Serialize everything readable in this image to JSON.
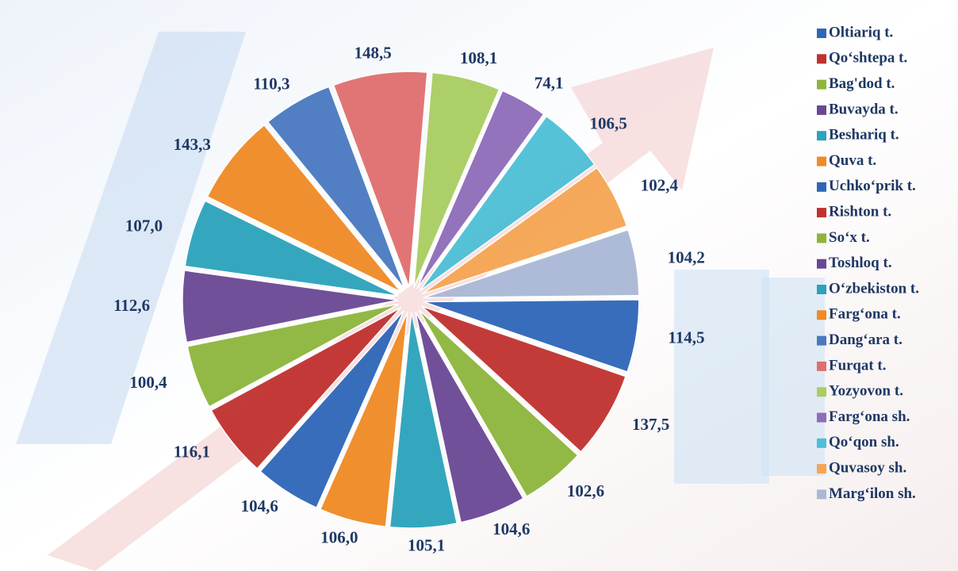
{
  "chart_data": {
    "type": "pie",
    "categories": [
      "Oltiariq t.",
      "Qo‘shtepa t.",
      "Bag'dod t.",
      "Buvayda t.",
      "Beshariq t.",
      "Quva t.",
      "Uchko‘prik t.",
      "Rishton t.",
      "So‘x t.",
      "Toshloq t.",
      "O‘zbekiston t.",
      "Farg‘ona t.",
      "Dang‘ara t.",
      "Furqat t.",
      "Yozyovon t.",
      "Farg‘ona sh.",
      "Qo‘qon sh.",
      "Quvasoy sh.",
      "Marg‘ilon sh."
    ],
    "values": [
      114.5,
      137.5,
      102.6,
      104.6,
      105.1,
      106.0,
      104.6,
      116.1,
      100.4,
      112.6,
      107.0,
      143.3,
      110.3,
      148.5,
      108.1,
      74.1,
      106.5,
      102.4,
      104.2
    ],
    "value_labels": [
      "114,5",
      "137,5",
      "102,6",
      "104,6",
      "105,1",
      "106,0",
      "104,6",
      "116,1",
      "100,4",
      "112,6",
      "107,0",
      "143,3",
      "110,3",
      "148,5",
      "108,1",
      "74,1",
      "106,5",
      "102,4",
      "104,2"
    ],
    "colors": [
      "#2e66b8",
      "#c0312f",
      "#8db53c",
      "#6a4795",
      "#2aa3bb",
      "#f08a24",
      "#2e66b8",
      "#c0312f",
      "#8db53c",
      "#6a4795",
      "#2aa3bb",
      "#f08a24",
      "#4a79c0",
      "#e06e6e",
      "#a9cd60",
      "#8e6cb8",
      "#4dbfd6",
      "#f5a552",
      "#a9b8d6"
    ],
    "legend": "right"
  }
}
